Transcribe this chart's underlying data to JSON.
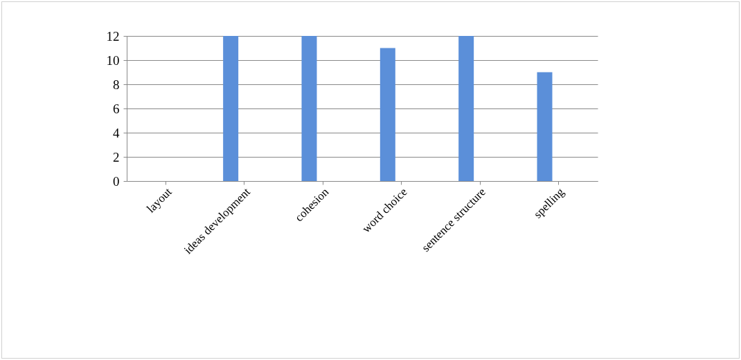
{
  "chart_data": {
    "type": "bar",
    "categories": [
      "layout",
      "ideas development",
      "cohesion",
      "word choice",
      "sentence structure",
      "spelling"
    ],
    "series": [
      {
        "color": "#5b8fd9",
        "values": [
          0,
          12,
          12,
          11,
          12,
          9
        ]
      },
      {
        "color": "#000000",
        "values": [
          0,
          0,
          0,
          0,
          null,
          null
        ]
      }
    ],
    "ylim": [
      0,
      12
    ],
    "yticks": [
      0,
      2,
      4,
      6,
      8,
      10,
      12
    ],
    "grid": "y"
  }
}
